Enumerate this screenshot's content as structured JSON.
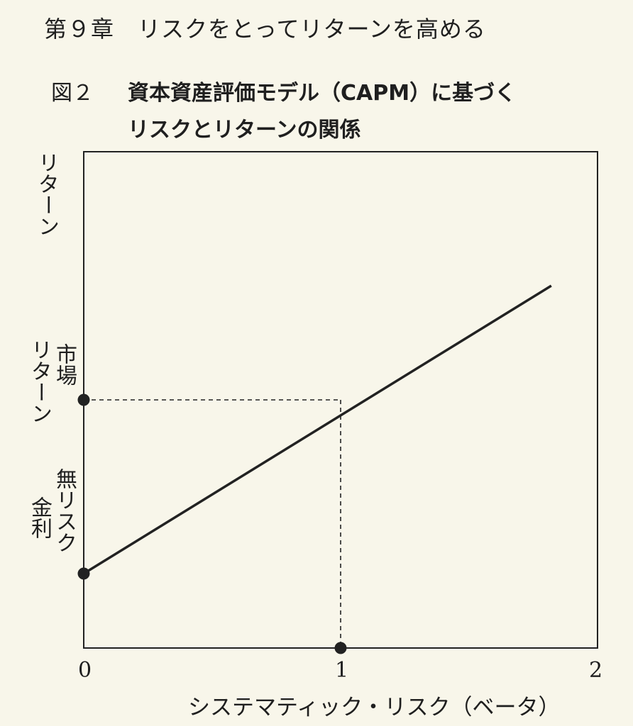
{
  "header": {
    "chapter": "第９章　リスクをとってリターンを高める",
    "figure_label": "図２",
    "title_line1": "資本資産評価モデル（CAPM）に基づく",
    "title_line2": "リスクとリターンの関係"
  },
  "chart_data": {
    "type": "line",
    "title": "資本資産評価モデル（CAPM）に基づくリスクとリターンの関係",
    "xlabel": "システマティック・リスク（ベータ）",
    "ylabel": "リターン",
    "xlim": [
      0,
      2
    ],
    "x_ticks": [
      "0",
      "1",
      "2"
    ],
    "risk_free_label": [
      "無リスク",
      "金利"
    ],
    "market_return_label": [
      "市場",
      "リターン"
    ],
    "series": [
      {
        "x": [
          0,
          1.82
        ],
        "y": [
          0.15,
          0.73
        ]
      }
    ],
    "points": [
      {
        "x": 0,
        "y": 0.15
      },
      {
        "x": 0,
        "y": 0.5
      },
      {
        "x": 1,
        "y": 0
      }
    ],
    "guides": {
      "x": 1,
      "y": 0.5
    },
    "grid": false,
    "colors": {
      "line": "#222222",
      "frame": "#222222",
      "background": "#f8f6ea"
    }
  }
}
